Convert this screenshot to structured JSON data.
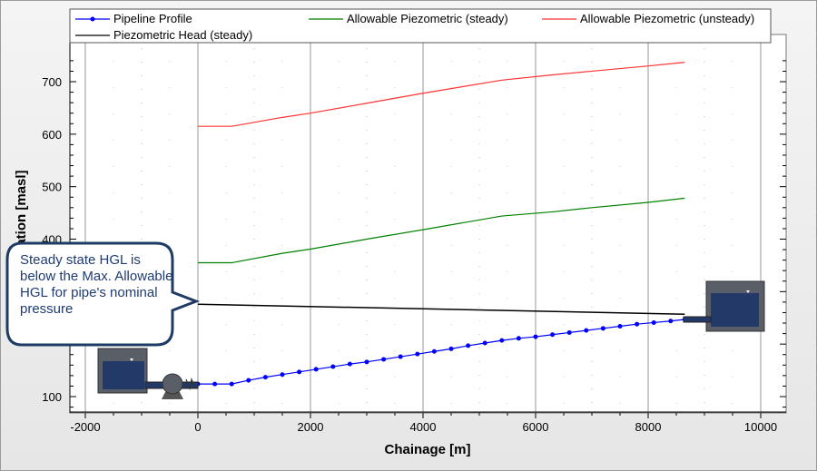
{
  "chart_data": {
    "type": "line",
    "title": "",
    "xlabel": "Chainage [m]",
    "ylabel": "Elevation [masl]",
    "xlim": [
      -2200,
      10500
    ],
    "ylim": [
      60,
      760
    ],
    "xticks": [
      -2000,
      0,
      2000,
      4000,
      6000,
      8000,
      10000
    ],
    "yticks": [
      100,
      200,
      300,
      400,
      500,
      600,
      700
    ],
    "ytick_labels_visible": [
      "100",
      "400",
      "500",
      "600",
      "700"
    ],
    "grid": true,
    "legend_position": "top",
    "series": [
      {
        "name": "Pipeline Profile",
        "color": "#0000ff",
        "markers": true,
        "x": [
          0,
          300,
          600,
          900,
          1200,
          1500,
          1800,
          2100,
          2400,
          2700,
          3000,
          3300,
          3600,
          3900,
          4200,
          4500,
          4800,
          5100,
          5400,
          5700,
          6000,
          6300,
          6600,
          6900,
          7200,
          7500,
          7800,
          8100,
          8400,
          8650
        ],
        "y": [
          124,
          124,
          124,
          131,
          137,
          142,
          147,
          152,
          157,
          162,
          166,
          171,
          176,
          181,
          186,
          191,
          197,
          202,
          207,
          211,
          214,
          218,
          222,
          226,
          230,
          234,
          238,
          241,
          244,
          247
        ]
      },
      {
        "name": "Allowable Piezometric (steady)",
        "color": "#008000",
        "markers": false,
        "x": [
          0,
          600,
          1500,
          2000,
          3000,
          4000,
          5400,
          6300,
          7000,
          8000,
          8650
        ],
        "y": [
          355,
          355,
          373,
          381,
          400,
          418,
          444,
          452,
          460,
          470,
          478
        ]
      },
      {
        "name": "Allowable Piezometric (unsteady)",
        "color": "#ff3333",
        "markers": false,
        "x": [
          0,
          600,
          1500,
          2000,
          3000,
          4000,
          5400,
          6300,
          7000,
          8000,
          8650
        ],
        "y": [
          615,
          615,
          632,
          640,
          659,
          678,
          703,
          713,
          720,
          730,
          737
        ]
      },
      {
        "name": "Piezometric Head (steady)",
        "color": "#000000",
        "markers": false,
        "x": [
          0,
          8650
        ],
        "y": [
          276,
          257
        ]
      }
    ]
  },
  "annotation": {
    "callout_text": "Steady state HGL is below the Max. Allowable HGL for pipe's nominal pressure"
  }
}
